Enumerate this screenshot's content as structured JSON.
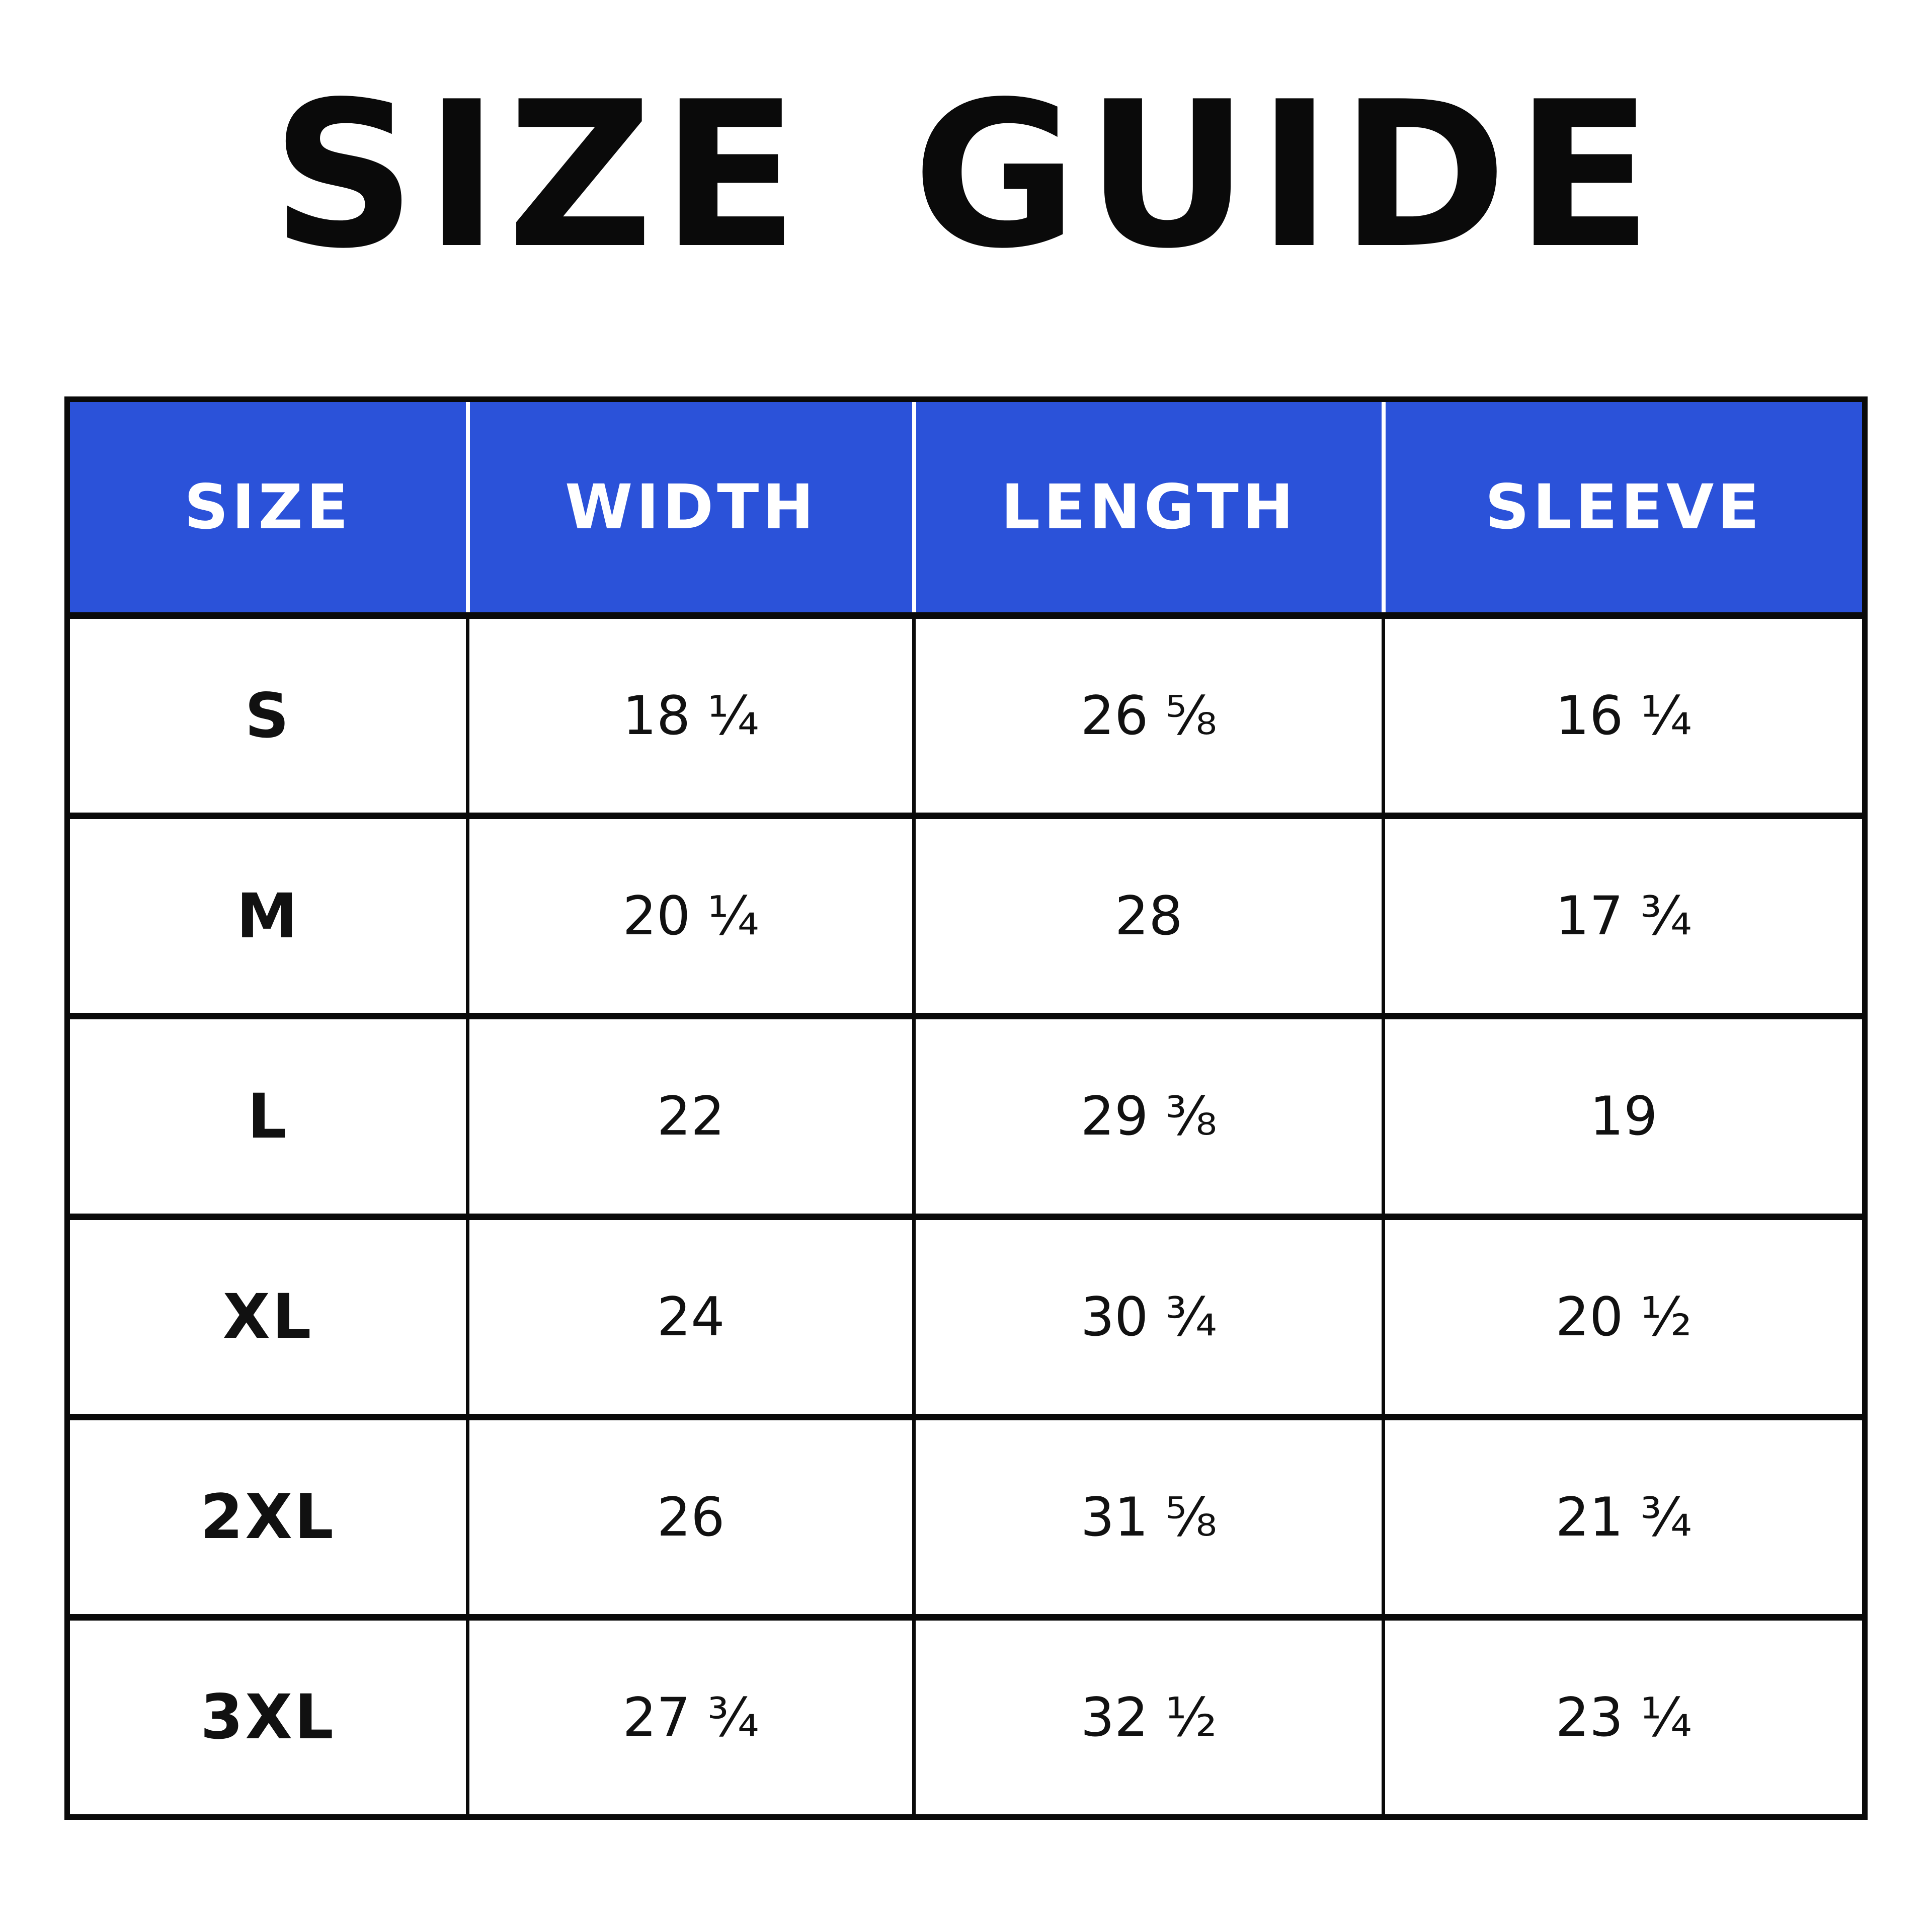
{
  "title": "SIZE GUIDE",
  "table": {
    "header": {
      "size": "SIZE",
      "width": "WIDTH",
      "length": "LENGTH",
      "sleeve": "SLEEVE"
    },
    "rows": [
      {
        "size": "S",
        "width": "18 ¼",
        "length": "26 ⅝",
        "sleeve": "16 ¼"
      },
      {
        "size": "M",
        "width": "20 ¼",
        "length": "28",
        "sleeve": "17 ¾"
      },
      {
        "size": "L",
        "width": "22",
        "length": "29 ⅜",
        "sleeve": "19"
      },
      {
        "size": "XL",
        "width": "24",
        "length": "30 ¾",
        "sleeve": "20 ½"
      },
      {
        "size": "2XL",
        "width": "26",
        "length": "31 ⅝",
        "sleeve": "21 ¾"
      },
      {
        "size": "3XL",
        "width": "27 ¾",
        "length": "32 ½",
        "sleeve": "23 ¼"
      }
    ],
    "colors": {
      "header_bg": "#2B52D9",
      "header_text": "#FFFFFF",
      "body_text": "#111111",
      "grid_border": "#0A0A0A",
      "page_background": "#FFFFFF"
    }
  }
}
